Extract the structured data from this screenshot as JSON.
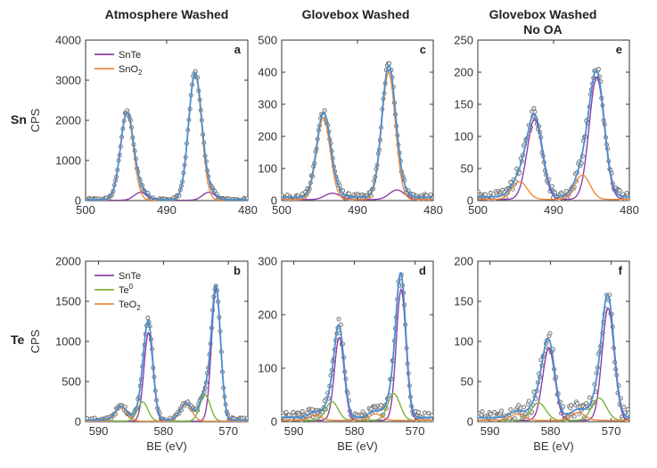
{
  "figure": {
    "column_titles": [
      "Atmosphere Washed",
      "Glovebox Washed",
      "Glovebox Washed",
      "No OA"
    ],
    "row_labels": [
      "Sn",
      "Te"
    ],
    "colors": {
      "SnTe": "#8e3fa6",
      "SnO2": "#ee8a3c",
      "Te0": "#7ab33c",
      "TeO2": "#ee8a3c",
      "total": "#4a8fd1",
      "points": "#555555"
    }
  },
  "chart_data": [
    {
      "type": "scatter",
      "panel_label": "a",
      "row": "Sn",
      "title": "Atmosphere Washed",
      "xlabel": "",
      "ylabel": "CPS",
      "xlim": [
        500,
        480
      ],
      "ylim": [
        0,
        4000
      ],
      "xticks": [
        500,
        490,
        480
      ],
      "yticks": [
        0,
        1000,
        2000,
        3000,
        4000
      ],
      "legend": {
        "position": "top-left",
        "entries": [
          {
            "label": "SnTe",
            "sub": "",
            "sup": "",
            "color": "#8e3fa6"
          },
          {
            "label": "SnO",
            "sub": "2",
            "sup": "",
            "color": "#ee8a3c"
          }
        ]
      },
      "series": [
        {
          "component": "SnTe",
          "peaks": [
            [
              493.2,
              200,
              0.8
            ],
            [
              484.8,
              200,
              0.8
            ]
          ]
        },
        {
          "component": "SnO2",
          "peaks": [
            [
              494.9,
              2170,
              0.8
            ],
            [
              486.5,
              3150,
              0.8
            ]
          ]
        }
      ],
      "noise": 70,
      "baseline": 20
    },
    {
      "type": "scatter",
      "panel_label": "c",
      "row": "Sn",
      "title": "Glovebox Washed",
      "xlabel": "",
      "ylabel": "",
      "xlim": [
        500,
        480
      ],
      "ylim": [
        0,
        500
      ],
      "xticks": [
        500,
        490,
        480
      ],
      "yticks": [
        0,
        100,
        200,
        300,
        400,
        500
      ],
      "legend": null,
      "series": [
        {
          "component": "SnTe",
          "peaks": [
            [
              493.3,
              20,
              1.0
            ],
            [
              484.8,
              30,
              1.0
            ]
          ]
        },
        {
          "component": "SnO2",
          "peaks": [
            [
              494.5,
              255,
              0.9
            ],
            [
              485.9,
              395,
              0.9
            ]
          ]
        }
      ],
      "noise": 15,
      "baseline": 10
    },
    {
      "type": "scatter",
      "panel_label": "e",
      "row": "Sn",
      "title": "Glovebox Washed No OA",
      "xlabel": "",
      "ylabel": "",
      "xlim": [
        500,
        480
      ],
      "ylim": [
        0,
        250
      ],
      "xticks": [
        500,
        490,
        480
      ],
      "yticks": [
        0,
        50,
        100,
        150,
        200,
        250
      ],
      "legend": null,
      "series": [
        {
          "component": "SnTe",
          "peaks": [
            [
              492.5,
              125,
              1.0
            ],
            [
              484.3,
              190,
              1.0
            ]
          ]
        },
        {
          "component": "SnO2",
          "peaks": [
            [
              494.5,
              28,
              1.0
            ],
            [
              486.2,
              38,
              1.0
            ]
          ]
        }
      ],
      "noise": 12,
      "baseline": 6
    },
    {
      "type": "scatter",
      "panel_label": "b",
      "row": "Te",
      "title": "",
      "xlabel": "BE (eV)",
      "ylabel": "CPS",
      "xlim": [
        592,
        567
      ],
      "ylim": [
        0,
        2000
      ],
      "xticks": [
        590,
        580,
        570
      ],
      "yticks": [
        0,
        500,
        1000,
        1500,
        2000
      ],
      "legend": {
        "position": "top-left",
        "entries": [
          {
            "label": "SnTe",
            "sub": "",
            "sup": "",
            "color": "#8e3fa6"
          },
          {
            "label": "Te",
            "sub": "",
            "sup": "0",
            "color": "#7ab33c"
          },
          {
            "label": "TeO",
            "sub": "2",
            "sup": "",
            "color": "#ee8a3c"
          }
        ]
      },
      "series": [
        {
          "component": "SnTe",
          "peaks": [
            [
              582.3,
              1100,
              0.7
            ],
            [
              571.9,
              1640,
              0.7
            ]
          ]
        },
        {
          "component": "Te0",
          "peaks": [
            [
              583.2,
              240,
              0.8
            ],
            [
              573.6,
              330,
              0.8
            ]
          ]
        },
        {
          "component": "TeO2",
          "peaks": [
            [
              586.5,
              170,
              0.9
            ],
            [
              576.5,
              210,
              0.9
            ]
          ]
        }
      ],
      "noise": 40,
      "baseline": 20
    },
    {
      "type": "scatter",
      "panel_label": "d",
      "row": "Te",
      "title": "",
      "xlabel": "BE (eV)",
      "ylabel": "",
      "xlim": [
        592,
        567
      ],
      "ylim": [
        0,
        300
      ],
      "xticks": [
        590,
        580,
        570
      ],
      "yticks": [
        0,
        100,
        200,
        300
      ],
      "legend": null,
      "series": [
        {
          "component": "SnTe",
          "peaks": [
            [
              582.5,
              155,
              0.8
            ],
            [
              572.3,
              245,
              0.8
            ]
          ]
        },
        {
          "component": "Te0",
          "peaks": [
            [
              583.7,
              35,
              1.0
            ],
            [
              573.5,
              50,
              1.0
            ]
          ]
        },
        {
          "component": "TeO2",
          "peaks": [
            [
              586.5,
              10,
              1.0
            ],
            [
              576.5,
              12,
              1.0
            ]
          ]
        }
      ],
      "noise": 15,
      "baseline": 8
    },
    {
      "type": "scatter",
      "panel_label": "f",
      "row": "Te",
      "title": "",
      "xlabel": "BE (eV)",
      "ylabel": "",
      "xlim": [
        592,
        567
      ],
      "ylim": [
        0,
        200
      ],
      "xticks": [
        590,
        580,
        570
      ],
      "yticks": [
        0,
        50,
        100,
        150,
        200
      ],
      "legend": null,
      "series": [
        {
          "component": "SnTe",
          "peaks": [
            [
              580.3,
              90,
              1.0
            ],
            [
              570.5,
              140,
              1.0
            ]
          ]
        },
        {
          "component": "Te0",
          "peaks": [
            [
              582.0,
              22,
              1.2
            ],
            [
              572.0,
              28,
              1.2
            ]
          ]
        },
        {
          "component": "TeO2",
          "peaks": [
            [
              585.5,
              8,
              1.2
            ],
            [
              575.5,
              10,
              1.2
            ]
          ]
        }
      ],
      "noise": 14,
      "baseline": 5
    }
  ]
}
